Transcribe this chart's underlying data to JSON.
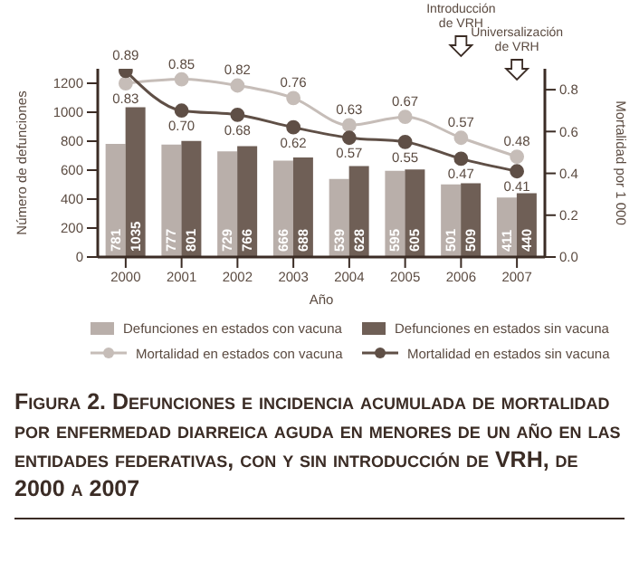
{
  "chart_data": {
    "type": "bar",
    "title": "Figura 2. Defunciones e incidencia acumulada de mortalidad por enfermedad diarreica aguda en menores de un año en las entidades federativas, con y sin introducción de VRH, de 2000 a 2007",
    "xlabel": "Año",
    "ylabel": "Número de defunciones",
    "y2label": "Mortalidad por 1 000",
    "categories": [
      "2000",
      "2001",
      "2002",
      "2003",
      "2004",
      "2005",
      "2006",
      "2007"
    ],
    "series": [
      {
        "name": "Defunciones en estados con vacuna",
        "color": "#b9afaa",
        "values": [
          781,
          777,
          729,
          666,
          539,
          595,
          501,
          411
        ],
        "value_labels": [
          "781",
          "777",
          "729",
          "666",
          "539",
          "595",
          "501",
          "411"
        ]
      },
      {
        "name": "Defunciones en estados sin vacuna",
        "color": "#6f5f56",
        "values": [
          1035,
          801,
          766,
          688,
          628,
          605,
          509,
          440
        ],
        "value_labels": [
          "1035",
          "801",
          "766",
          "688",
          "628",
          "605",
          "509",
          "440"
        ]
      },
      {
        "name": "Mortalidad en estados con vacuna",
        "type": "line",
        "axis": "y2",
        "color": "#c6bdb8",
        "values": [
          0.83,
          0.85,
          0.82,
          0.76,
          0.63,
          0.67,
          0.57,
          0.48
        ],
        "value_labels": [
          "0.83",
          "0.85",
          "0.82",
          "0.76",
          "0.63",
          "0.67",
          "0.57",
          "0.48"
        ]
      },
      {
        "name": "Mortalidad en estados sin vacuna",
        "type": "line",
        "axis": "y2",
        "color": "#5f4f46",
        "values": [
          0.89,
          0.7,
          0.68,
          0.62,
          0.57,
          0.55,
          0.47,
          0.41
        ],
        "value_labels": [
          "0.89",
          "0.70",
          "0.68",
          "0.62",
          "0.57",
          "0.55",
          "0.47",
          "0.41"
        ]
      }
    ],
    "ylim": [
      0,
      1300
    ],
    "yticks": [
      0,
      200,
      400,
      600,
      800,
      1000,
      1200
    ],
    "y2lim": [
      0,
      0.9
    ],
    "y2ticks": [
      {
        "value": 0,
        "label": "0.0"
      },
      0.2,
      0.4,
      0.6,
      0.8
    ],
    "marker": "circle",
    "grid": false,
    "legend": "bottom",
    "annotations": [
      "Introducción de VRH",
      "Universalización de VRH"
    ]
  }
}
